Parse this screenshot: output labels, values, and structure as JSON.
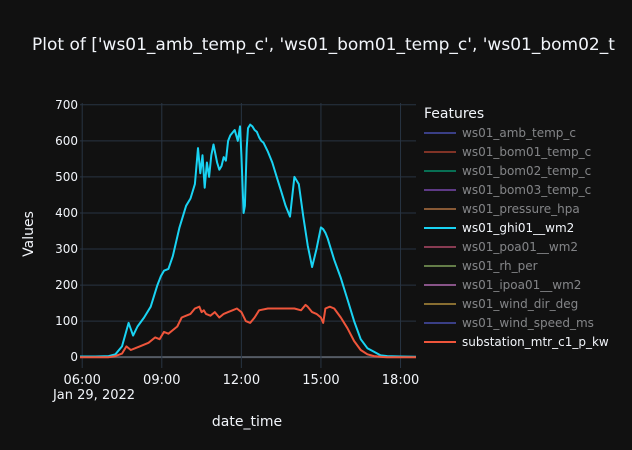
{
  "chart_data": {
    "type": "line",
    "title": "Plot of ['ws01_amb_temp_c', 'ws01_bom01_temp_c', 'ws01_bom02_t",
    "xlabel": "date_time",
    "ylabel": "Values",
    "x_tick_labels": [
      "06:00",
      "09:00",
      "12:00",
      "15:00",
      "18:00"
    ],
    "x_date_label": "Jan 29, 2022",
    "y_ticks": [
      0,
      100,
      200,
      300,
      400,
      500,
      600,
      700
    ],
    "y_range": [
      -30,
      705
    ],
    "x_range": [
      "05:55",
      "18:35"
    ],
    "grid": true,
    "legend_title": "Features",
    "legend_position": "right",
    "series": [
      {
        "name": "ws01_amb_temp_c",
        "color": "#636efa",
        "visible": false
      },
      {
        "name": "ws01_bom01_temp_c",
        "color": "#ef553b",
        "visible": false
      },
      {
        "name": "ws01_bom02_temp_c",
        "color": "#00cc96",
        "visible": false
      },
      {
        "name": "ws01_bom03_temp_c",
        "color": "#ab63fa",
        "visible": false
      },
      {
        "name": "ws01_pressure_hpa",
        "color": "#ffa15a",
        "visible": false
      },
      {
        "name": "ws01_ghi01__wm2",
        "color": "#19d3f3",
        "visible": true,
        "x": [
          "05:55",
          "06:30",
          "07:00",
          "07:15",
          "07:30",
          "07:45",
          "07:55",
          "08:05",
          "08:20",
          "08:35",
          "08:50",
          "08:58",
          "09:05",
          "09:15",
          "09:25",
          "09:40",
          "09:55",
          "10:05",
          "10:15",
          "10:22",
          "10:27",
          "10:32",
          "10:37",
          "10:42",
          "10:47",
          "10:52",
          "10:57",
          "11:05",
          "11:10",
          "11:15",
          "11:20",
          "11:25",
          "11:30",
          "11:35",
          "11:45",
          "11:52",
          "11:57",
          "12:00",
          "12:05",
          "12:08",
          "12:12",
          "12:15",
          "12:20",
          "12:25",
          "12:30",
          "12:35",
          "12:40",
          "12:45",
          "12:50",
          "13:00",
          "13:10",
          "13:20",
          "13:30",
          "13:40",
          "13:50",
          "14:00",
          "14:10",
          "14:20",
          "14:30",
          "14:40",
          "14:50",
          "15:00",
          "15:05",
          "15:10",
          "15:15",
          "15:20",
          "15:25",
          "15:30",
          "15:45",
          "16:00",
          "16:15",
          "16:30",
          "16:45",
          "17:00",
          "17:15",
          "17:30",
          "18:00",
          "18:35"
        ],
        "y": [
          2,
          2,
          3,
          8,
          30,
          95,
          60,
          85,
          110,
          140,
          200,
          225,
          240,
          245,
          280,
          360,
          420,
          440,
          480,
          580,
          510,
          560,
          470,
          540,
          500,
          560,
          590,
          540,
          520,
          530,
          555,
          545,
          600,
          615,
          630,
          600,
          640,
          560,
          400,
          420,
          580,
          635,
          645,
          640,
          630,
          625,
          610,
          600,
          595,
          570,
          540,
          500,
          460,
          420,
          390,
          500,
          480,
          390,
          310,
          250,
          300,
          360,
          355,
          345,
          330,
          310,
          290,
          270,
          220,
          160,
          100,
          50,
          25,
          15,
          5,
          3,
          2,
          1
        ]
      },
      {
        "name": "ws01_poa01__wm2",
        "color": "#ff6692",
        "visible": false
      },
      {
        "name": "ws01_rh_per",
        "color": "#b6e880",
        "visible": false
      },
      {
        "name": "ws01_ipoa01__wm2",
        "color": "#ff97ff",
        "visible": false
      },
      {
        "name": "ws01_wind_dir_deg",
        "color": "#fecb52",
        "visible": false
      },
      {
        "name": "ws01_wind_speed_ms",
        "color": "#636efa",
        "visible": false
      },
      {
        "name": "substation_mtr_c1_p_kw",
        "color": "#ef553b",
        "visible": true,
        "x": [
          "05:55",
          "06:30",
          "07:00",
          "07:15",
          "07:30",
          "07:40",
          "07:50",
          "08:00",
          "08:10",
          "08:30",
          "08:45",
          "08:55",
          "09:05",
          "09:15",
          "09:25",
          "09:35",
          "09:45",
          "09:55",
          "10:05",
          "10:15",
          "10:25",
          "10:30",
          "10:35",
          "10:40",
          "10:50",
          "11:00",
          "11:10",
          "11:20",
          "11:30",
          "11:40",
          "11:50",
          "12:00",
          "12:10",
          "12:20",
          "12:30",
          "12:40",
          "13:00",
          "13:30",
          "14:00",
          "14:15",
          "14:25",
          "14:30",
          "14:40",
          "14:50",
          "15:00",
          "15:05",
          "15:10",
          "15:20",
          "15:30",
          "15:45",
          "16:00",
          "16:15",
          "16:30",
          "16:45",
          "17:00",
          "17:15",
          "17:30",
          "18:00",
          "18:35"
        ],
        "y": [
          0,
          0,
          0,
          3,
          10,
          30,
          20,
          25,
          30,
          40,
          55,
          50,
          70,
          65,
          75,
          85,
          110,
          115,
          120,
          135,
          140,
          125,
          130,
          120,
          115,
          125,
          110,
          120,
          125,
          130,
          135,
          125,
          100,
          95,
          110,
          130,
          135,
          135,
          135,
          130,
          145,
          140,
          125,
          120,
          110,
          95,
          135,
          140,
          135,
          110,
          80,
          45,
          20,
          8,
          3,
          1,
          0,
          0,
          0
        ]
      }
    ]
  }
}
